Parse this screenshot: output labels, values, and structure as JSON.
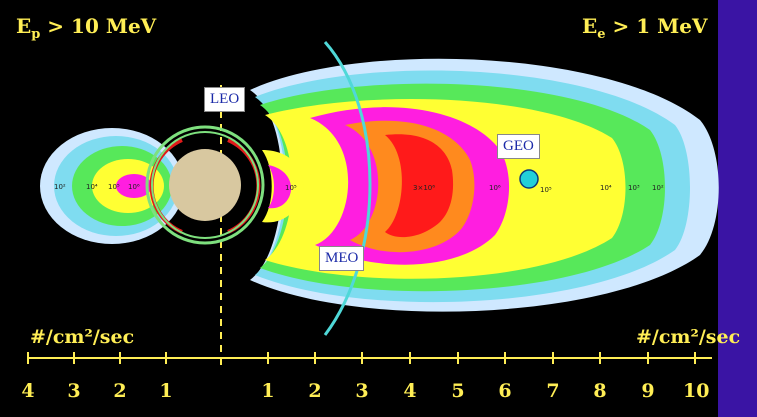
{
  "titles": {
    "left_prefix": "E",
    "left_sub": "p",
    "left_suffix": " > 10 MeV",
    "right_prefix": "E",
    "right_sub": "e",
    "right_suffix": " > 1 MeV"
  },
  "units": {
    "left": "#/cm²/sec",
    "right": "#/cm²/sec"
  },
  "axis": {
    "left_ticks": [
      "4",
      "3",
      "2",
      "1"
    ],
    "right_ticks": [
      "1",
      "2",
      "3",
      "4",
      "5",
      "6",
      "7",
      "8",
      "9",
      "10"
    ]
  },
  "orbits": {
    "leo": "LEO",
    "meo": "MEO",
    "geo": "GEO"
  },
  "flux_labels": {
    "proton": [
      "10²",
      "10⁴",
      "10⁵",
      "10⁶"
    ],
    "electron_inner": "10⁵",
    "electron_outer": [
      "3×10⁶",
      "10⁶",
      "10⁵",
      "10⁴",
      "10³",
      "10²"
    ]
  },
  "colors": {
    "background": "#000000",
    "band": "#3a14a4",
    "axis": "#ffee55",
    "contour_outer": "#cfe8ff",
    "contour_cyan": "#7fdcf0",
    "contour_green": "#57e85a",
    "contour_yellow": "#ffff33",
    "contour_magenta": "#ff1ee0",
    "contour_orange": "#ff8a1e",
    "contour_red": "#ff1a1a",
    "earth": "#d8c8a0",
    "leo_orbit": "#7ee07e",
    "meo_orbit": "#4fd8d8",
    "geo_satellite": "#22d0d8"
  }
}
